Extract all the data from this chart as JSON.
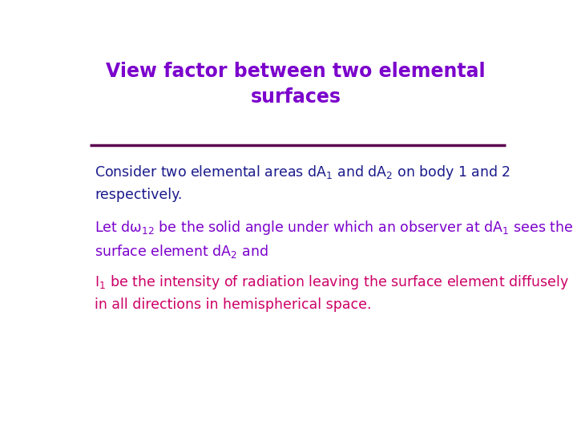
{
  "title_line1": "View factor between two elemental",
  "title_line2": "surfaces",
  "title_color": "#7B00CC",
  "title_fontsize": 17,
  "line_color": "#5C0050",
  "background_color": "#FFFFFF",
  "para1_color": "#1A1A8C",
  "para2_color": "#7B00CC",
  "para3_color": "#CC0066",
  "body_fontsize": 12.5
}
